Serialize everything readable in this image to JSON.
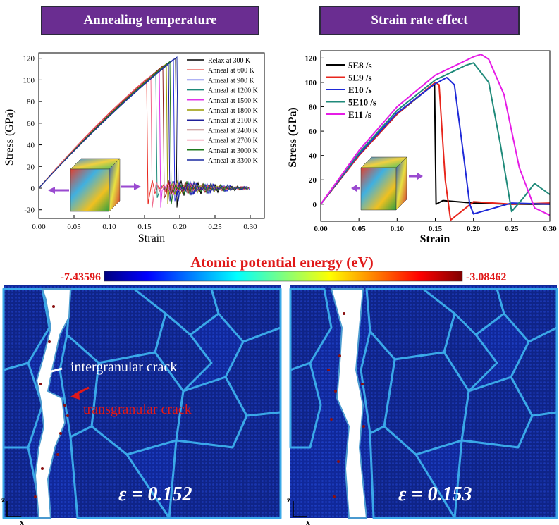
{
  "banners": {
    "left": "Annealing temperature",
    "right": "Strain rate effect"
  },
  "chart_data": [
    {
      "type": "line",
      "title": "Annealing temperature",
      "xlabel": "Strain",
      "ylabel": "Stress (GPa)",
      "xlim": [
        0,
        0.32
      ],
      "ylim": [
        -28,
        125
      ],
      "xticks": [
        "0.00",
        "0.05",
        "0.10",
        "0.15",
        "0.20",
        "0.25",
        "0.30"
      ],
      "yticks": [
        "-20",
        "0",
        "20",
        "40",
        "60",
        "80",
        "100",
        "120"
      ],
      "legend_position": "top-right",
      "series": [
        {
          "name": "Relax at 300 K",
          "color": "#000000",
          "fracture_strain": 0.194,
          "peak_stress": 120
        },
        {
          "name": "Anneal at 600 K",
          "color": "#e8261c",
          "fracture_strain": 0.153,
          "peak_stress": 101
        },
        {
          "name": "Anneal at 900 K",
          "color": "#2a30e0",
          "fracture_strain": 0.191,
          "peak_stress": 119
        },
        {
          "name": "Anneal at 1200 K",
          "color": "#1f8a7a",
          "fracture_strain": 0.166,
          "peak_stress": 107
        },
        {
          "name": "Anneal at 1500 K",
          "color": "#e034e8",
          "fracture_strain": 0.171,
          "peak_stress": 110
        },
        {
          "name": "Anneal at 1800 K",
          "color": "#9a9a00",
          "fracture_strain": 0.181,
          "peak_stress": 115
        },
        {
          "name": "Anneal at 2100 K",
          "color": "#20209a",
          "fracture_strain": 0.184,
          "peak_stress": 116
        },
        {
          "name": "Anneal at 2400 K",
          "color": "#8a1a1a",
          "fracture_strain": 0.176,
          "peak_stress": 113
        },
        {
          "name": "Anneal at 2700 K",
          "color": "#f06a8a",
          "fracture_strain": 0.159,
          "peak_stress": 104
        },
        {
          "name": "Anneal at 3000 K",
          "color": "#1f7a1f",
          "fracture_strain": 0.186,
          "peak_stress": 117
        },
        {
          "name": "Anneal at 3300 K",
          "color": "#1a2aa0",
          "fracture_strain": 0.196,
          "peak_stress": 121
        }
      ]
    },
    {
      "type": "line",
      "title": "Strain rate effect",
      "xlabel": "Strain",
      "ylabel": "Stress (GPa)",
      "xlim": [
        0,
        0.3
      ],
      "ylim": [
        -14,
        126
      ],
      "xticks": [
        "0.00",
        "0.05",
        "0.10",
        "0.15",
        "0.20",
        "0.25",
        "0.30"
      ],
      "yticks": [
        "0",
        "20",
        "40",
        "60",
        "80",
        "100",
        "120"
      ],
      "legend_position": "top-left",
      "series": [
        {
          "name": "5E8 /s",
          "color": "#000000",
          "x": [
            0,
            0.05,
            0.1,
            0.149,
            0.151,
            0.16,
            0.2,
            0.25,
            0.3
          ],
          "y": [
            0,
            40,
            74,
            99,
            0,
            3,
            1,
            0,
            0
          ]
        },
        {
          "name": "5E9 /s",
          "color": "#e8261c",
          "x": [
            0,
            0.05,
            0.1,
            0.15,
            0.155,
            0.163,
            0.17,
            0.2,
            0.25,
            0.3
          ],
          "y": [
            0,
            40,
            74,
            100,
            98,
            20,
            -13,
            2,
            0,
            1
          ]
        },
        {
          "name": "E10 /s",
          "color": "#1f2ad8",
          "x": [
            0,
            0.05,
            0.1,
            0.15,
            0.165,
            0.175,
            0.185,
            0.195,
            0.2,
            0.25,
            0.3
          ],
          "y": [
            0,
            41,
            75,
            99,
            104,
            98,
            50,
            0,
            -8,
            1,
            0
          ]
        },
        {
          "name": "5E10 /s",
          "color": "#1f8a7a",
          "x": [
            0,
            0.05,
            0.1,
            0.15,
            0.19,
            0.2,
            0.22,
            0.235,
            0.25,
            0.265,
            0.28,
            0.3
          ],
          "y": [
            0,
            42,
            77,
            102,
            114,
            116,
            100,
            50,
            -6,
            5,
            17,
            8
          ]
        },
        {
          "name": "E11 /s",
          "color": "#e61ce6",
          "x": [
            0,
            0.05,
            0.1,
            0.15,
            0.2,
            0.21,
            0.22,
            0.24,
            0.26,
            0.28,
            0.3
          ],
          "y": [
            0,
            44,
            80,
            106,
            121,
            123,
            119,
            90,
            30,
            -3,
            -9
          ]
        }
      ]
    }
  ],
  "colorbar": {
    "title": "Atomic potential energy (eV)",
    "min_label": "-7.43596",
    "max_label": "-3.08462"
  },
  "snapshots": {
    "left_strain": "ε = 0.152",
    "right_strain": "ε = 0.153",
    "intergranular_label": "intergranular crack",
    "transgranular_label": "transgranular crack",
    "axis_z": "z",
    "axis_x": "x"
  }
}
